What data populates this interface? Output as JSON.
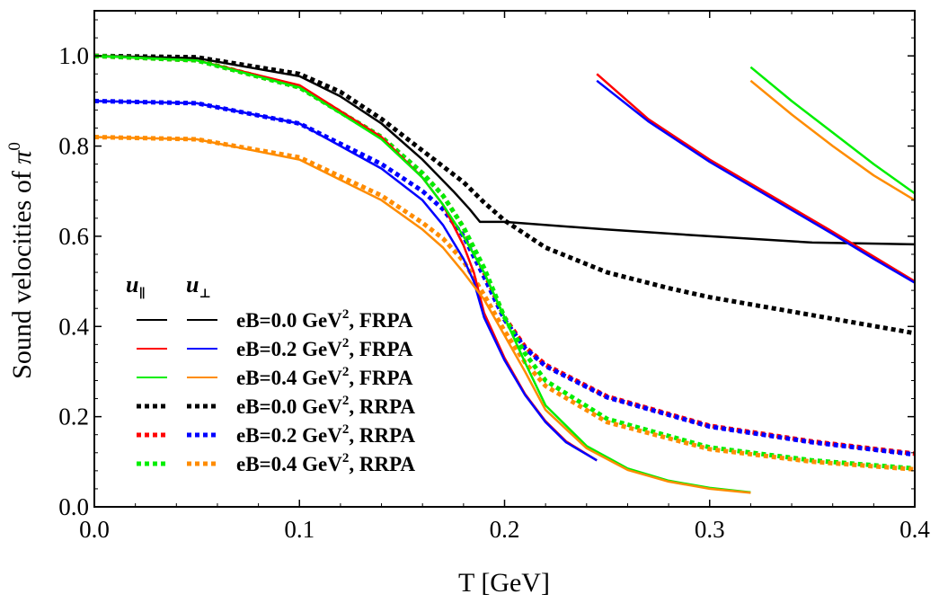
{
  "chart_data": {
    "type": "line",
    "title": "",
    "xlabel": "T [GeV]",
    "ylabel_main": "Sound velocities of ",
    "ylabel_symbol": "π",
    "ylabel_superscript": "0",
    "xlim": [
      0.0,
      0.4
    ],
    "ylim": [
      0.0,
      1.1
    ],
    "xticks": [
      "0.0",
      "0.1",
      "0.2",
      "0.3",
      "0.4"
    ],
    "yticks": [
      "0.0",
      "0.2",
      "0.4",
      "0.6",
      "0.8",
      "1.0"
    ],
    "grid": false,
    "legend": {
      "placement": "lower-left",
      "col_headers": [
        {
          "main": "u",
          "sub": "∥"
        },
        {
          "main": "u",
          "sub": "⊥"
        }
      ],
      "rows": [
        {
          "prefix": "eB=0.0 GeV",
          "sup": "2",
          "suffix": ", FRPA",
          "par_color": "#000000",
          "perp_color": "#000000",
          "dashed": false
        },
        {
          "prefix": "eB=0.2 GeV",
          "sup": "2",
          "suffix": ", FRPA",
          "par_color": "#ff0000",
          "perp_color": "#0000ff",
          "dashed": false
        },
        {
          "prefix": "eB=0.4 GeV",
          "sup": "2",
          "suffix": ", FRPA",
          "par_color": "#00ee00",
          "perp_color": "#ff8c00",
          "dashed": false
        },
        {
          "prefix": "eB=0.0 GeV",
          "sup": "2",
          "suffix": ", RRPA",
          "par_color": "#000000",
          "perp_color": "#000000",
          "dashed": true
        },
        {
          "prefix": "eB=0.2 GeV",
          "sup": "2",
          "suffix": ", RRPA",
          "par_color": "#ff0000",
          "perp_color": "#0000ff",
          "dashed": true
        },
        {
          "prefix": "eB=0.4 GeV",
          "sup": "2",
          "suffix": ", RRPA",
          "par_color": "#00ee00",
          "perp_color": "#ff8c00",
          "dashed": true
        }
      ]
    },
    "series": [
      {
        "color": "#000000",
        "dashed": true,
        "width": 5,
        "points": [
          [
            0,
            1.0
          ],
          [
            0.05,
            0.997
          ],
          [
            0.1,
            0.96
          ],
          [
            0.12,
            0.92
          ],
          [
            0.14,
            0.86
          ],
          [
            0.16,
            0.79
          ],
          [
            0.18,
            0.72
          ],
          [
            0.19,
            0.675
          ],
          [
            0.2,
            0.635
          ],
          [
            0.22,
            0.575
          ],
          [
            0.25,
            0.52
          ],
          [
            0.28,
            0.485
          ],
          [
            0.3,
            0.465
          ],
          [
            0.35,
            0.425
          ],
          [
            0.4,
            0.385
          ]
        ]
      },
      {
        "color": "#ff0000",
        "dashed": true,
        "width": 5,
        "points": [
          [
            0,
            1.0
          ],
          [
            0.05,
            0.99
          ],
          [
            0.1,
            0.93
          ],
          [
            0.14,
            0.82
          ],
          [
            0.16,
            0.74
          ],
          [
            0.17,
            0.69
          ],
          [
            0.18,
            0.62
          ],
          [
            0.19,
            0.52
          ],
          [
            0.2,
            0.42
          ],
          [
            0.21,
            0.355
          ],
          [
            0.22,
            0.315
          ],
          [
            0.25,
            0.245
          ],
          [
            0.3,
            0.18
          ],
          [
            0.35,
            0.145
          ],
          [
            0.4,
            0.118
          ]
        ]
      },
      {
        "color": "#0000ff",
        "dashed": true,
        "width": 5,
        "points": [
          [
            0,
            0.9
          ],
          [
            0.05,
            0.895
          ],
          [
            0.1,
            0.85
          ],
          [
            0.14,
            0.76
          ],
          [
            0.16,
            0.7
          ],
          [
            0.17,
            0.66
          ],
          [
            0.18,
            0.6
          ],
          [
            0.19,
            0.51
          ],
          [
            0.2,
            0.415
          ],
          [
            0.21,
            0.352
          ],
          [
            0.22,
            0.312
          ],
          [
            0.25,
            0.243
          ],
          [
            0.3,
            0.178
          ],
          [
            0.35,
            0.143
          ],
          [
            0.4,
            0.116
          ]
        ]
      },
      {
        "color": "#00ee00",
        "dashed": true,
        "width": 5,
        "points": [
          [
            0,
            1.0
          ],
          [
            0.05,
            0.99
          ],
          [
            0.1,
            0.93
          ],
          [
            0.14,
            0.82
          ],
          [
            0.16,
            0.74
          ],
          [
            0.17,
            0.69
          ],
          [
            0.18,
            0.62
          ],
          [
            0.19,
            0.53
          ],
          [
            0.2,
            0.42
          ],
          [
            0.21,
            0.34
          ],
          [
            0.22,
            0.28
          ],
          [
            0.25,
            0.195
          ],
          [
            0.3,
            0.132
          ],
          [
            0.35,
            0.103
          ],
          [
            0.4,
            0.085
          ]
        ]
      },
      {
        "color": "#ff8c00",
        "dashed": true,
        "width": 5,
        "points": [
          [
            0,
            0.82
          ],
          [
            0.05,
            0.815
          ],
          [
            0.1,
            0.775
          ],
          [
            0.14,
            0.69
          ],
          [
            0.16,
            0.63
          ],
          [
            0.17,
            0.595
          ],
          [
            0.18,
            0.545
          ],
          [
            0.19,
            0.47
          ],
          [
            0.2,
            0.39
          ],
          [
            0.21,
            0.32
          ],
          [
            0.22,
            0.268
          ],
          [
            0.25,
            0.188
          ],
          [
            0.3,
            0.128
          ],
          [
            0.35,
            0.1
          ],
          [
            0.4,
            0.083
          ]
        ]
      },
      {
        "color": "#000000",
        "dashed": false,
        "width": 2.5,
        "points": [
          [
            0,
            1.0
          ],
          [
            0.05,
            0.995
          ],
          [
            0.1,
            0.955
          ],
          [
            0.12,
            0.91
          ],
          [
            0.14,
            0.85
          ],
          [
            0.16,
            0.77
          ],
          [
            0.175,
            0.7
          ],
          [
            0.183,
            0.66
          ],
          [
            0.188,
            0.632
          ],
          [
            0.2,
            0.632
          ],
          [
            0.25,
            0.615
          ],
          [
            0.3,
            0.6
          ],
          [
            0.35,
            0.586
          ],
          [
            0.4,
            0.582
          ]
        ]
      },
      {
        "color": "#ff0000",
        "dashed": false,
        "width": 2.5,
        "points": [
          [
            0,
            1.0
          ],
          [
            0.05,
            0.99
          ],
          [
            0.1,
            0.935
          ],
          [
            0.14,
            0.82
          ],
          [
            0.16,
            0.73
          ],
          [
            0.17,
            0.67
          ],
          [
            0.18,
            0.58
          ],
          [
            0.185,
            0.52
          ],
          [
            0.19,
            0.43
          ],
          [
            0.2,
            0.33
          ],
          [
            0.21,
            0.25
          ],
          [
            0.22,
            0.19
          ],
          [
            0.23,
            0.145
          ],
          [
            0.245,
            0.103
          ]
        ]
      },
      {
        "color": "#0000ff",
        "dashed": false,
        "width": 2.5,
        "points": [
          [
            0,
            0.9
          ],
          [
            0.05,
            0.895
          ],
          [
            0.1,
            0.85
          ],
          [
            0.14,
            0.75
          ],
          [
            0.16,
            0.68
          ],
          [
            0.17,
            0.625
          ],
          [
            0.18,
            0.55
          ],
          [
            0.185,
            0.5
          ],
          [
            0.19,
            0.42
          ],
          [
            0.2,
            0.325
          ],
          [
            0.21,
            0.248
          ],
          [
            0.22,
            0.188
          ],
          [
            0.23,
            0.143
          ],
          [
            0.245,
            0.103
          ]
        ]
      },
      {
        "color": "#00ee00",
        "dashed": false,
        "width": 2.5,
        "points": [
          [
            0,
            1.0
          ],
          [
            0.05,
            0.99
          ],
          [
            0.1,
            0.93
          ],
          [
            0.14,
            0.815
          ],
          [
            0.16,
            0.73
          ],
          [
            0.17,
            0.67
          ],
          [
            0.18,
            0.6
          ],
          [
            0.19,
            0.52
          ],
          [
            0.2,
            0.42
          ],
          [
            0.21,
            0.32
          ],
          [
            0.22,
            0.225
          ],
          [
            0.24,
            0.135
          ],
          [
            0.26,
            0.085
          ],
          [
            0.28,
            0.058
          ],
          [
            0.3,
            0.042
          ],
          [
            0.32,
            0.032
          ]
        ]
      },
      {
        "color": "#ff8c00",
        "dashed": false,
        "width": 2.5,
        "points": [
          [
            0,
            0.82
          ],
          [
            0.05,
            0.815
          ],
          [
            0.1,
            0.77
          ],
          [
            0.14,
            0.68
          ],
          [
            0.16,
            0.615
          ],
          [
            0.17,
            0.575
          ],
          [
            0.18,
            0.52
          ],
          [
            0.19,
            0.46
          ],
          [
            0.2,
            0.38
          ],
          [
            0.21,
            0.3
          ],
          [
            0.22,
            0.215
          ],
          [
            0.24,
            0.13
          ],
          [
            0.26,
            0.082
          ],
          [
            0.28,
            0.056
          ],
          [
            0.3,
            0.04
          ],
          [
            0.32,
            0.031
          ]
        ]
      },
      {
        "color": "#ff0000",
        "dashed": false,
        "width": 2.5,
        "points": [
          [
            0.245,
            0.96
          ],
          [
            0.27,
            0.86
          ],
          [
            0.3,
            0.77
          ],
          [
            0.33,
            0.69
          ],
          [
            0.36,
            0.61
          ],
          [
            0.38,
            0.555
          ],
          [
            0.4,
            0.5
          ]
        ]
      },
      {
        "color": "#0000ff",
        "dashed": false,
        "width": 2.5,
        "points": [
          [
            0.245,
            0.945
          ],
          [
            0.27,
            0.855
          ],
          [
            0.3,
            0.765
          ],
          [
            0.33,
            0.685
          ],
          [
            0.36,
            0.605
          ],
          [
            0.38,
            0.55
          ],
          [
            0.4,
            0.497
          ]
        ]
      },
      {
        "color": "#00ee00",
        "dashed": false,
        "width": 2.5,
        "points": [
          [
            0.32,
            0.975
          ],
          [
            0.34,
            0.9
          ],
          [
            0.36,
            0.83
          ],
          [
            0.38,
            0.76
          ],
          [
            0.4,
            0.695
          ]
        ]
      },
      {
        "color": "#ff8c00",
        "dashed": false,
        "width": 2.5,
        "points": [
          [
            0.32,
            0.945
          ],
          [
            0.34,
            0.87
          ],
          [
            0.36,
            0.8
          ],
          [
            0.38,
            0.735
          ],
          [
            0.4,
            0.68
          ]
        ]
      }
    ]
  }
}
